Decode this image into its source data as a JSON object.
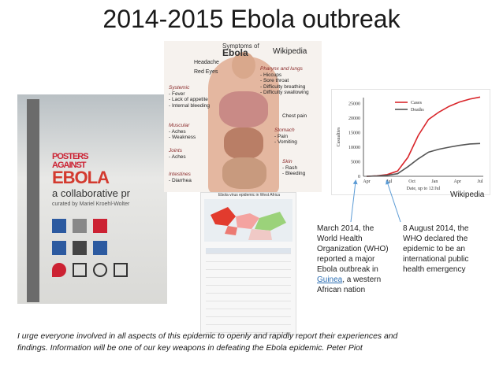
{
  "title": "2014-2015 Ebola outbreak",
  "poster": {
    "headline_1": "POSTERS",
    "headline_2": "AGAINST",
    "headline_3": "EBOLA",
    "subtitle": "a collaborative pr",
    "curated": "curated by Mariel Kroehl-Wolter"
  },
  "anatomy": {
    "title_small": "Symptoms of",
    "title_big": "Ebola",
    "source": "Wikipedia",
    "symptoms": {
      "headache": "Headache",
      "red_eyes": "Red Eyes",
      "systemic_h": "Systemic",
      "systemic": [
        "- Fever",
        "- Lack of appetite",
        "- Internal bleeding"
      ],
      "muscular_h": "Muscular",
      "muscular": [
        "- Aches",
        "- Weakness"
      ],
      "joints_h": "Joints",
      "joints": [
        "- Aches"
      ],
      "intestines_h": "Intestines",
      "intestines": [
        "- Diarrhea"
      ],
      "pharynx_h": "Pharynx and lungs",
      "pharynx": [
        "- Hiccups",
        "- Sore throat",
        "- Difficulty breathing",
        "- Difficulty swallowing"
      ],
      "chest": "Chest pain",
      "stomach_h": "Stomach",
      "stomach": [
        "- Pain",
        "- Vomiting"
      ],
      "skin_h": "Skin",
      "skin": [
        "- Rash",
        "- Bleeding"
      ]
    }
  },
  "map_caption": "Ebola virus epidemic in West Africa",
  "chart_data": {
    "type": "line",
    "source": "Wikipedia",
    "xlabel": "Date, up to 12/Jul",
    "ylabel": "Casualties",
    "x_ticks": [
      "Apr",
      "Jul",
      "Oct",
      "Jan",
      "Apr",
      "Jul"
    ],
    "ylim": [
      0,
      27000
    ],
    "y_ticks": [
      0,
      5000,
      10000,
      15000,
      20000,
      25000
    ],
    "legend_position": "top-left",
    "series": [
      {
        "name": "Cases",
        "color": "#d9262b",
        "values": [
          0,
          150,
          600,
          1800,
          6500,
          14000,
          19500,
          22000,
          24000,
          25500,
          26500,
          27200
        ]
      },
      {
        "name": "Deaths",
        "color": "#555555",
        "values": [
          0,
          100,
          350,
          900,
          3300,
          6000,
          8300,
          9300,
          10000,
          10600,
          11100,
          11250
        ]
      }
    ]
  },
  "annotations": {
    "march_lines": [
      "March 2014, the",
      "World Health",
      "Organization (WHO)",
      "reported a major",
      "Ebola outbreak in"
    ],
    "march_link": "Guinea",
    "march_tail": ", a western",
    "march_last": "African nation",
    "august_lines": [
      "8 August 2014, the",
      "WHO declared the",
      "epidemic to be an",
      "international public",
      "health emergency"
    ]
  },
  "quote_line_1": "I urge everyone involved in all aspects of this epidemic to openly and rapidly report their experiences and",
  "quote_line_2": "findings. Information will be one of our key weapons in defeating the Ebola epidemic.  Peter Piot"
}
